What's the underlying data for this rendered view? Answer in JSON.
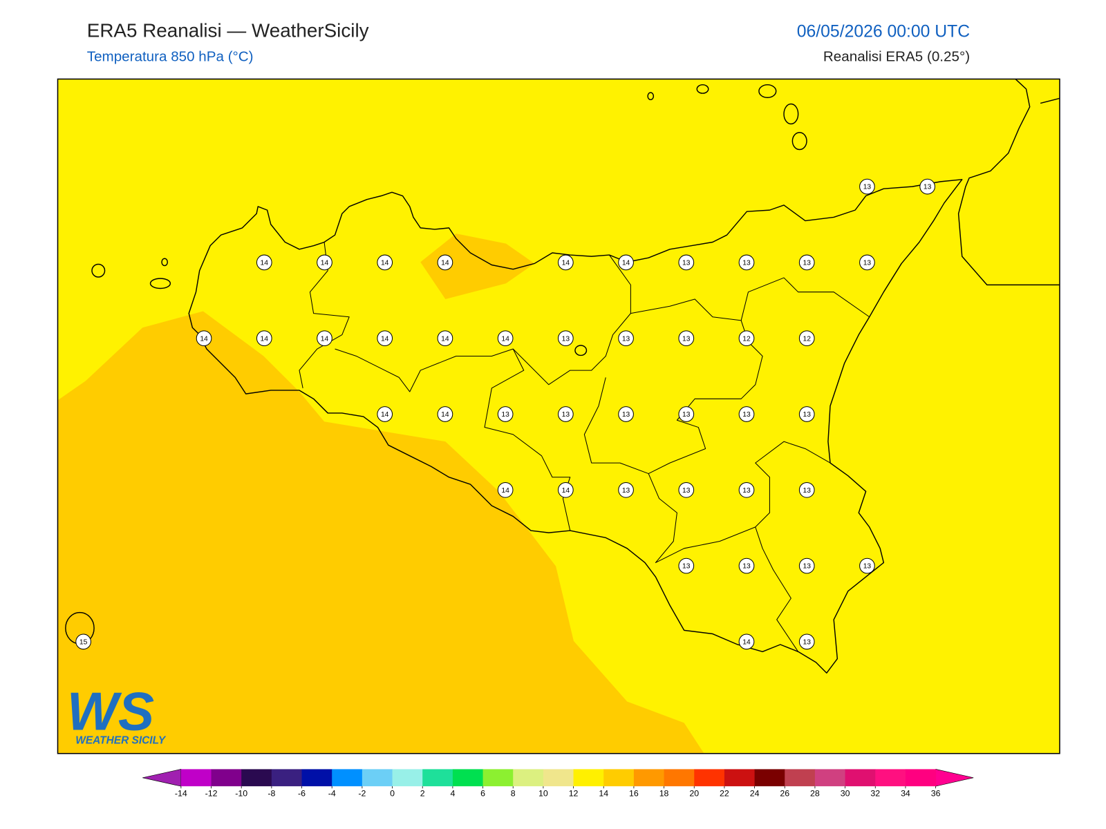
{
  "header": {
    "title": "ERA5 Reanalisi — WeatherSicily",
    "subtitle": "Temperatura 850 hPa (°C)",
    "datetime": "06/05/2026 00:00 UTC",
    "source": "Reanalisi ERA5 (0.25°)"
  },
  "grid_values": [
    [
      null,
      null,
      null,
      null,
      null,
      null,
      null,
      null,
      null,
      null,
      null,
      null,
      null,
      13,
      13
    ],
    [
      null,
      null,
      null,
      14,
      14,
      14,
      14,
      null,
      14,
      14,
      13,
      13,
      13,
      13,
      null
    ],
    [
      null,
      null,
      14,
      14,
      14,
      14,
      14,
      14,
      13,
      13,
      13,
      12,
      12,
      null,
      null
    ],
    [
      null,
      null,
      null,
      null,
      null,
      14,
      14,
      13,
      13,
      13,
      13,
      13,
      13,
      null,
      null
    ],
    [
      null,
      null,
      null,
      null,
      null,
      null,
      null,
      14,
      14,
      13,
      13,
      13,
      13,
      null,
      null
    ],
    [
      null,
      null,
      null,
      null,
      null,
      null,
      null,
      null,
      null,
      null,
      13,
      13,
      13,
      13,
      null
    ],
    [
      15,
      null,
      null,
      null,
      null,
      null,
      null,
      null,
      null,
      null,
      null,
      14,
      13,
      null,
      null
    ]
  ],
  "colorbar": {
    "ticks": [
      -14,
      -12,
      -10,
      -8,
      -6,
      -4,
      -2,
      0,
      2,
      4,
      6,
      8,
      10,
      12,
      14,
      16,
      18,
      20,
      22,
      24,
      26,
      28,
      30,
      32,
      34,
      36
    ],
    "colors": [
      "#c000c8",
      "#80008c",
      "#2a0a50",
      "#3a2080",
      "#0010a8",
      "#0090ff",
      "#6ccff6",
      "#98f0e8",
      "#1ee09a",
      "#00e050",
      "#8cf030",
      "#dcf080",
      "#f0e68c",
      "#fff000",
      "#ffcc00",
      "#ff9900",
      "#ff7700",
      "#ff3300",
      "#cc1111",
      "#7a0000",
      "#c04050",
      "#d04080",
      "#e01070",
      "#ff1080",
      "#ff0080"
    ],
    "under": "#a020b0",
    "over": "#ff0090"
  },
  "logo": {
    "mark": "WS",
    "text": "WEATHER SICILY"
  }
}
